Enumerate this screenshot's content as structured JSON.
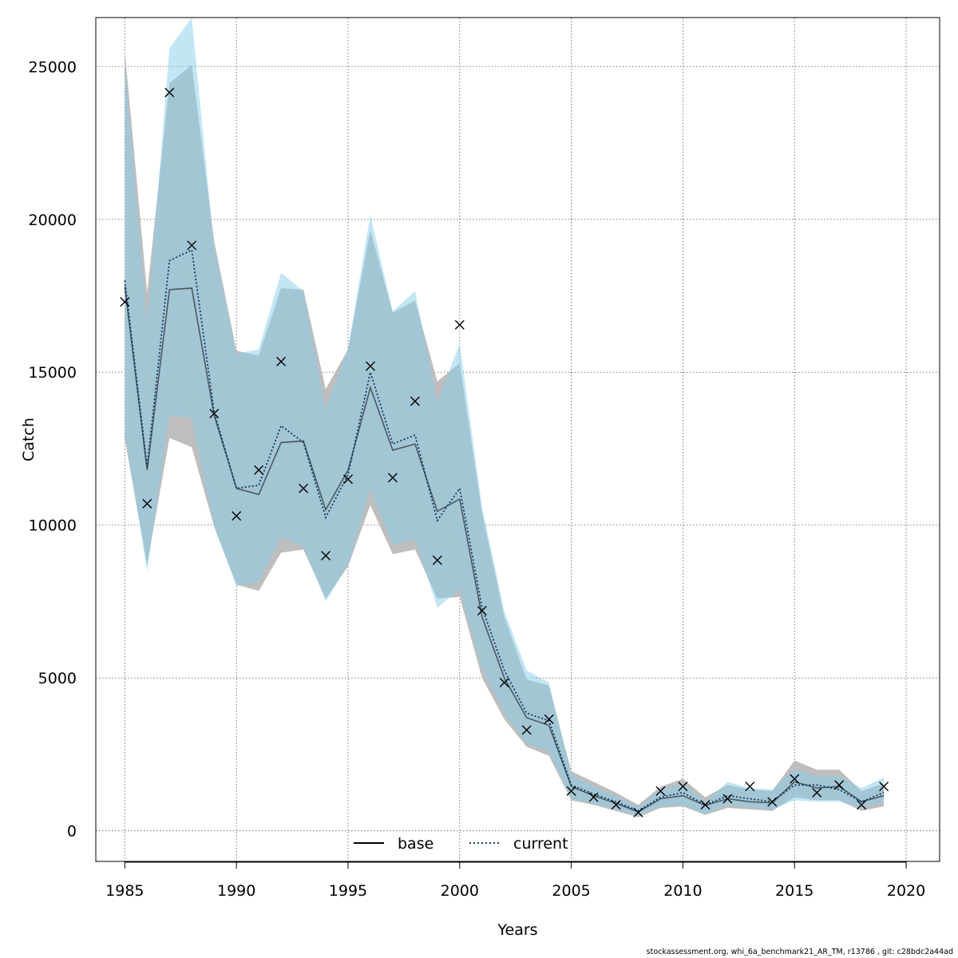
{
  "chart_data": {
    "type": "line",
    "title": "",
    "xlabel": "Years",
    "ylabel": "Catch",
    "xlim": [
      1983.7,
      2021.5
    ],
    "ylim": [
      -1000,
      26600
    ],
    "x_ticks": [
      1985,
      1990,
      1995,
      2000,
      2005,
      2010,
      2015,
      2020
    ],
    "x_tick_labels": [
      "1985",
      "1990",
      "1995",
      "2000",
      "2005",
      "2010",
      "2015",
      "2020"
    ],
    "y_ticks": [
      0,
      5000,
      10000,
      15000,
      20000,
      25000
    ],
    "y_tick_labels": [
      "0",
      "5000",
      "10000",
      "15000",
      "20000",
      "25000"
    ],
    "grid": true,
    "legend_position": "bottom-center",
    "years": [
      1985,
      1986,
      1987,
      1988,
      1989,
      1990,
      1991,
      1992,
      1993,
      1994,
      1995,
      1996,
      1997,
      1998,
      1999,
      2000,
      2001,
      2002,
      2003,
      2004,
      2005,
      2006,
      2007,
      2008,
      2009,
      2010,
      2011,
      2012,
      2013,
      2014,
      2015,
      2016,
      2017,
      2018,
      2019
    ],
    "series": [
      {
        "name": "base",
        "line_style": "solid",
        "color": "#000000",
        "band_color": "#bebebe",
        "values": [
          17800,
          11800,
          17700,
          17750,
          13600,
          11200,
          11000,
          12700,
          12750,
          10500,
          11800,
          14500,
          12450,
          12650,
          10450,
          10850,
          7000,
          5000,
          3700,
          3450,
          1450,
          1150,
          900,
          620,
          1050,
          1150,
          830,
          1050,
          950,
          920,
          1600,
          1400,
          1450,
          950,
          1150
        ],
        "lower": [
          12800,
          8700,
          12850,
          12550,
          9950,
          8050,
          7850,
          9100,
          9200,
          7600,
          8650,
          10650,
          9050,
          9200,
          7600,
          7650,
          5000,
          3650,
          2750,
          2450,
          1000,
          850,
          650,
          450,
          750,
          800,
          520,
          750,
          700,
          650,
          1100,
          1000,
          1000,
          650,
          800
        ],
        "upper": [
          25500,
          17600,
          24450,
          25050,
          19300,
          15700,
          15550,
          17750,
          17700,
          14450,
          15750,
          19650,
          16950,
          17350,
          14700,
          15300,
          10400,
          7000,
          4950,
          4750,
          1950,
          1600,
          1250,
          850,
          1450,
          1700,
          1100,
          1500,
          1350,
          1300,
          2300,
          2000,
          2000,
          1300,
          1550
        ]
      },
      {
        "name": "current",
        "line_style": "dotted",
        "color": "#0e3a5f",
        "band_color": "#87ceeb",
        "values": [
          18000,
          11900,
          18650,
          19000,
          13700,
          11200,
          11300,
          13250,
          12700,
          10250,
          11650,
          15000,
          12650,
          12950,
          10150,
          11200,
          7300,
          5250,
          3850,
          3600,
          1500,
          1200,
          950,
          650,
          1100,
          1250,
          850,
          1150,
          1050,
          950,
          1500,
          1500,
          1350,
          950,
          1250
        ],
        "lower": [
          13000,
          8500,
          13600,
          13500,
          9950,
          8000,
          8150,
          9600,
          9300,
          7500,
          8700,
          11150,
          9350,
          9550,
          7300,
          7900,
          5300,
          3850,
          2850,
          2600,
          1050,
          900,
          700,
          500,
          800,
          850,
          550,
          850,
          750,
          700,
          1000,
          950,
          950,
          750,
          950
        ],
        "upper": [
          25000,
          16600,
          25600,
          26600,
          19100,
          15600,
          15750,
          18250,
          17650,
          13800,
          15800,
          20150,
          17000,
          17650,
          14000,
          15950,
          10600,
          7200,
          5250,
          4850,
          1850,
          1450,
          1150,
          780,
          1350,
          1550,
          950,
          1600,
          1400,
          1350,
          2000,
          1800,
          1800,
          1400,
          1750
        ]
      }
    ],
    "observations": {
      "name": "",
      "marker": "x",
      "values": [
        17300,
        10700,
        24150,
        19150,
        13650,
        10300,
        11800,
        15350,
        11200,
        9000,
        11500,
        15200,
        11550,
        14050,
        8850,
        16550,
        7200,
        4850,
        3300,
        3650,
        1300,
        1100,
        850,
        600,
        1300,
        1450,
        850,
        1050,
        1450,
        950,
        1700,
        1250,
        1500,
        850,
        1450
      ]
    }
  },
  "footer_text": "stockassessment.org, whi_6a_benchmark21_AR_TM, r13786 , git: c28bdc2a44ad"
}
